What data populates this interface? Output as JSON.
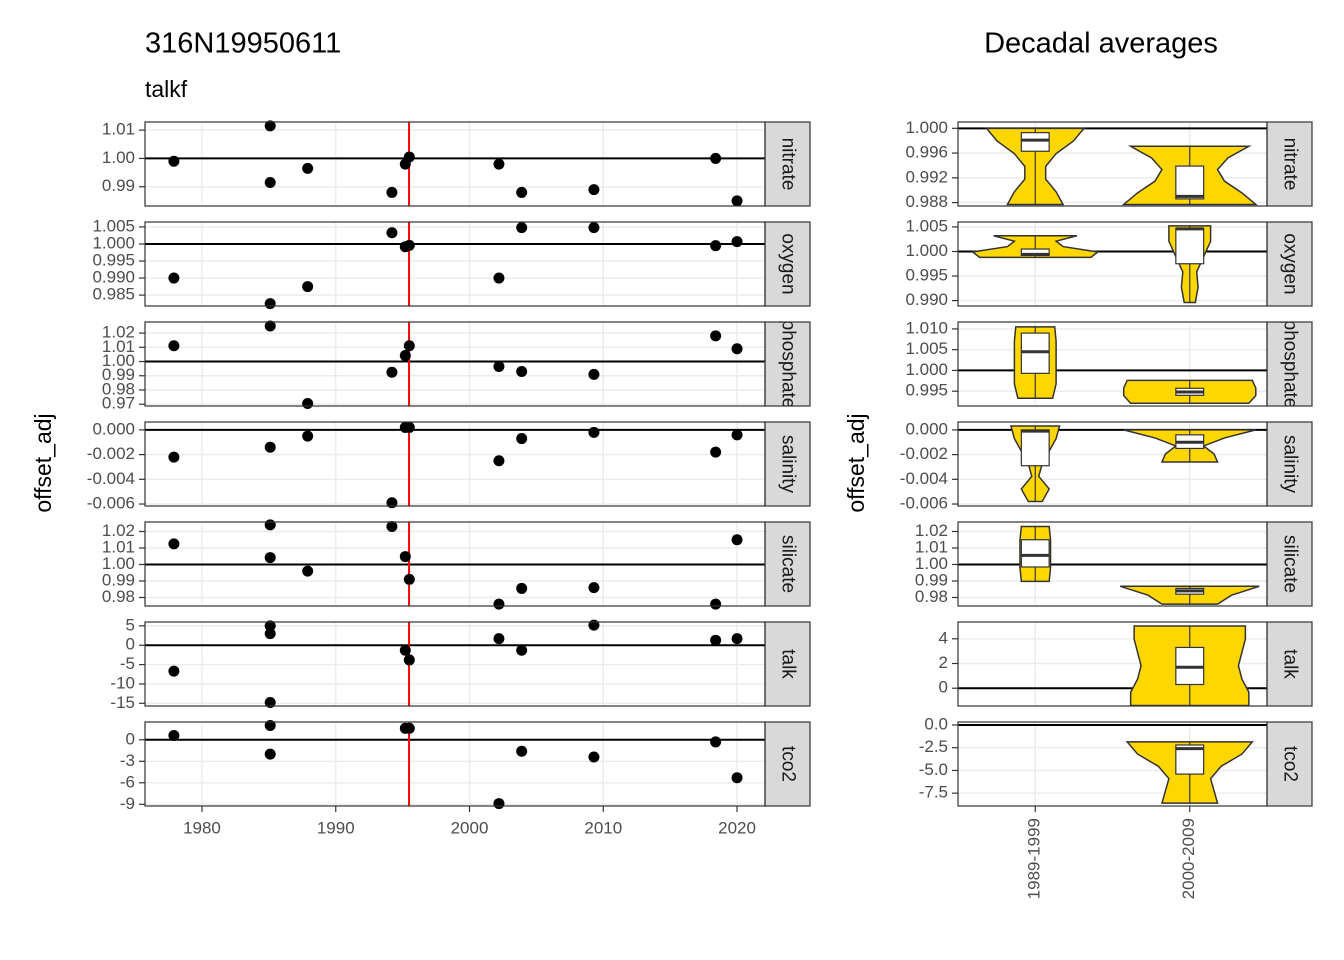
{
  "chart_data": [
    {
      "type": "scatter",
      "title": "316N19950611",
      "subtitle": "talkf",
      "ylabel": "offset_adj",
      "xlim": [
        1975.74,
        2022.09
      ],
      "xticks": [
        1980,
        1990,
        2000,
        2010,
        2020
      ],
      "vline": 1995.48,
      "vline_color": "#ff0000",
      "point_color": "#000000",
      "grid": true,
      "facets": [
        {
          "label": "nitrate",
          "ylim": [
            0.98321,
            1.01286
          ],
          "yticks": [
            1.01,
            {
              "value": 1,
              "label": "1.00"
            },
            0.99
          ],
          "hline": 1,
          "x": [
            1977.9,
            1985.1,
            1985.1,
            1987.9,
            1994.2,
            1995.2,
            1995.5,
            2002.2,
            2003.9,
            2009.3,
            2018.4,
            2020.0
          ],
          "y": [
            0.999,
            1.0115,
            0.9915,
            0.9965,
            0.988,
            0.998,
            1.0005,
            0.998,
            0.988,
            0.989,
            1.0,
            0.985
          ]
        },
        {
          "label": "oxygen",
          "ylim": [
            0.9818,
            1.00645
          ],
          "yticks": [
            1.005,
            {
              "value": 1,
              "label": "1.000"
            },
            0.995,
            {
              "value": 0.99,
              "label": "0.990"
            },
            0.985
          ],
          "hline": 1,
          "x": [
            1977.9,
            1985.1,
            1987.9,
            1994.2,
            1995.2,
            1995.5,
            2002.2,
            2003.9,
            2009.3,
            2018.4,
            2020.0
          ],
          "y": [
            0.99,
            0.9825,
            0.9875,
            1.0033,
            0.9992,
            0.9996,
            0.99,
            1.0048,
            1.0048,
            0.9995,
            1.0007
          ]
        },
        {
          "label": "phosphate",
          "ylim": [
            0.96875,
            1.02778
          ],
          "yticks": [
            1.02,
            1.01,
            {
              "value": 1,
              "label": "1.00"
            },
            0.99,
            0.98,
            0.97
          ],
          "hline": 1,
          "x": [
            1977.9,
            1985.1,
            1987.9,
            1994.2,
            1995.2,
            1995.5,
            2002.2,
            2003.9,
            2009.3,
            2018.4,
            2020.0
          ],
          "y": [
            1.0111,
            1.025,
            0.9705,
            0.9925,
            1.0042,
            1.0111,
            0.9965,
            0.993,
            0.991,
            1.018,
            1.009
          ]
        },
        {
          "label": "salinity",
          "ylim": [
            -0.00616,
            0.00064
          ],
          "yticks": [
            {
              "value": 0,
              "label": "0.000"
            },
            -0.002,
            -0.004,
            -0.006
          ],
          "hline": 0,
          "x": [
            1977.9,
            1985.1,
            1987.9,
            1994.2,
            1995.2,
            1995.5,
            2002.2,
            2003.9,
            2009.3,
            2018.4,
            2020.0
          ],
          "y": [
            -0.0022,
            -0.0014,
            -0.0005,
            -0.0059,
            0.0002,
            0.0002,
            -0.0025,
            -0.0007,
            -0.0002,
            -0.0018,
            -0.0004
          ]
        },
        {
          "label": "silicate",
          "ylim": [
            0.97485,
            1.02575
          ],
          "yticks": [
            1.02,
            1.01,
            {
              "value": 1,
              "label": "1.00"
            },
            0.99,
            0.98
          ],
          "hline": 1,
          "x": [
            1977.9,
            1985.1,
            1985.1,
            1987.9,
            1994.2,
            1995.2,
            1995.5,
            2002.2,
            2003.9,
            2009.3,
            2018.4,
            2020.0
          ],
          "y": [
            1.0125,
            1.024,
            1.0042,
            0.996,
            1.023,
            1.0048,
            0.991,
            0.976,
            0.9855,
            0.986,
            0.976,
            1.015
          ]
        },
        {
          "label": "talk",
          "ylim": [
            -15.7,
            6.0
          ],
          "yticks": [
            5,
            0,
            -5,
            -10,
            -15
          ],
          "hline": 0,
          "x": [
            1977.9,
            1985.1,
            1985.1,
            1985.1,
            1995.2,
            1995.5,
            2002.2,
            2003.9,
            2009.3,
            2018.4,
            2020.0
          ],
          "y": [
            -6.7,
            5.0,
            3.0,
            -14.8,
            -1.3,
            -3.8,
            1.7,
            -1.3,
            5.2,
            1.3,
            1.7
          ]
        },
        {
          "label": "tco2",
          "ylim": [
            -9.24,
            2.48
          ],
          "yticks": [
            0,
            -3,
            -6,
            -9
          ],
          "hline": 0,
          "x": [
            1977.9,
            1985.1,
            1985.1,
            1995.2,
            1995.5,
            2002.2,
            2003.9,
            2009.3,
            2018.4,
            2020.0
          ],
          "y": [
            0.6,
            2.0,
            -2.0,
            1.6,
            1.6,
            -8.9,
            -1.6,
            -2.4,
            -0.3,
            -5.3
          ]
        }
      ]
    },
    {
      "type": "violin",
      "title": "Decadal averages",
      "ylabel": "offset_adj",
      "categories": [
        "1989-1999",
        "2000-2009"
      ],
      "fill": "#ffd700",
      "grid": true,
      "facets": [
        {
          "label": "nitrate",
          "ylim": [
            0.98745,
            1.00102
          ],
          "yticks": [
            {
              "value": 1,
              "label": "1.000"
            },
            0.996,
            0.992,
            0.988
          ],
          "hline": 1,
          "groups": [
            {
              "box": [
                0.9877,
                0.9963,
                0.9981,
                0.9993,
                1.0
              ],
              "density": [
                0.4,
                0.3,
                0.15,
                0.15,
                0.3,
                0.55,
                0.7
              ]
            },
            {
              "box": [
                0.9877,
                0.9886,
                0.989,
                0.9939,
                0.9971
              ],
              "density": [
                0.95,
                0.75,
                0.5,
                0.4,
                0.55,
                0.85
              ]
            }
          ]
        },
        {
          "label": "oxygen",
          "ylim": [
            0.9889,
            1.006
          ],
          "yticks": [
            1.005,
            {
              "value": 1,
              "label": "1.000"
            },
            0.995,
            {
              "value": 0.99,
              "label": "0.990"
            }
          ],
          "hline": 1,
          "groups": [
            {
              "box": [
                0.9988,
                0.9992,
                0.9994,
                1.0005,
                1.0032
              ],
              "density": [
                0.8,
                0.9,
                0.4,
                0.3,
                0.6
              ]
            },
            {
              "box": [
                0.9896,
                0.9975,
                1.0046,
                1.0047,
                1.0052
              ],
              "density": [
                0.08,
                0.12,
                0.1,
                0.2,
                0.3,
                0.3
              ]
            }
          ]
        },
        {
          "label": "phosphate",
          "ylim": [
            0.99143,
            1.01167
          ],
          "yticks": [
            {
              "value": 1.01,
              "label": "1.010"
            },
            1.005,
            {
              "value": 1,
              "label": "1.000"
            },
            0.995
          ],
          "hline": 1,
          "groups": [
            {
              "box": [
                0.9933,
                0.9993,
                1.0045,
                1.009,
                1.0105
              ],
              "density": [
                0.25,
                0.3,
                0.3,
                0.3,
                0.3,
                0.28
              ]
            },
            {
              "box": [
                0.9921,
                0.994,
                0.9948,
                0.9957,
                0.9976
              ],
              "density": [
                0.85,
                0.95,
                0.95,
                0.9
              ]
            }
          ]
        },
        {
          "label": "salinity",
          "ylim": [
            -0.00616,
            0.00064
          ],
          "yticks": [
            {
              "value": 0,
              "label": "0.000"
            },
            -0.002,
            -0.004,
            -0.006
          ],
          "hline": 0,
          "groups": [
            {
              "box": [
                -0.0058,
                -0.0029,
                -0.0001,
                0.0,
                0.00032
              ],
              "density": [
                0.1,
                0.2,
                0.05,
                0.1,
                0.2,
                0.3,
                0.35
              ]
            },
            {
              "box": [
                -0.0026,
                -0.0015,
                -0.001,
                -0.0004,
                0.0
              ],
              "density": [
                0.4,
                0.35,
                0.2,
                0.5,
                0.95
              ]
            }
          ]
        },
        {
          "label": "silicate",
          "ylim": [
            0.97485,
            1.02575
          ],
          "yticks": [
            1.02,
            1.01,
            {
              "value": 1,
              "label": "1.00"
            },
            0.99,
            0.98
          ],
          "hline": 1,
          "groups": [
            {
              "box": [
                0.9898,
                0.9985,
                1.0055,
                1.015,
                1.023
              ],
              "density": [
                0.2,
                0.22,
                0.22,
                0.22,
                0.2
              ]
            },
            {
              "box": [
                0.976,
                0.982,
                0.984,
                0.9855,
                0.9868
              ],
              "density": [
                0.4,
                0.6,
                1.0
              ]
            }
          ]
        },
        {
          "label": "talk",
          "ylim": [
            -1.44,
            5.36
          ],
          "yticks": [
            4,
            2,
            0
          ],
          "hline": 0,
          "groups": [
            null,
            {
              "box": [
                -1.4,
                0.3,
                1.7,
                3.3,
                5.04
              ],
              "density": [
                0.85,
                0.85,
                0.75,
                0.7,
                0.75,
                0.8,
                0.8
              ]
            }
          ]
        },
        {
          "label": "tco2",
          "ylim": [
            -8.91,
            0.33
          ],
          "yticks": [
            {
              "value": 0,
              "label": "0.0"
            },
            -2.5,
            {
              "value": -5,
              "label": "-5.0"
            },
            -7.5
          ],
          "hline": 0,
          "groups": [
            null,
            {
              "box": [
                -8.6,
                -5.4,
                -2.6,
                -2.2,
                -1.85
              ],
              "density": [
                0.4,
                0.35,
                0.3,
                0.45,
                0.75,
                0.9
              ]
            }
          ]
        }
      ]
    }
  ]
}
